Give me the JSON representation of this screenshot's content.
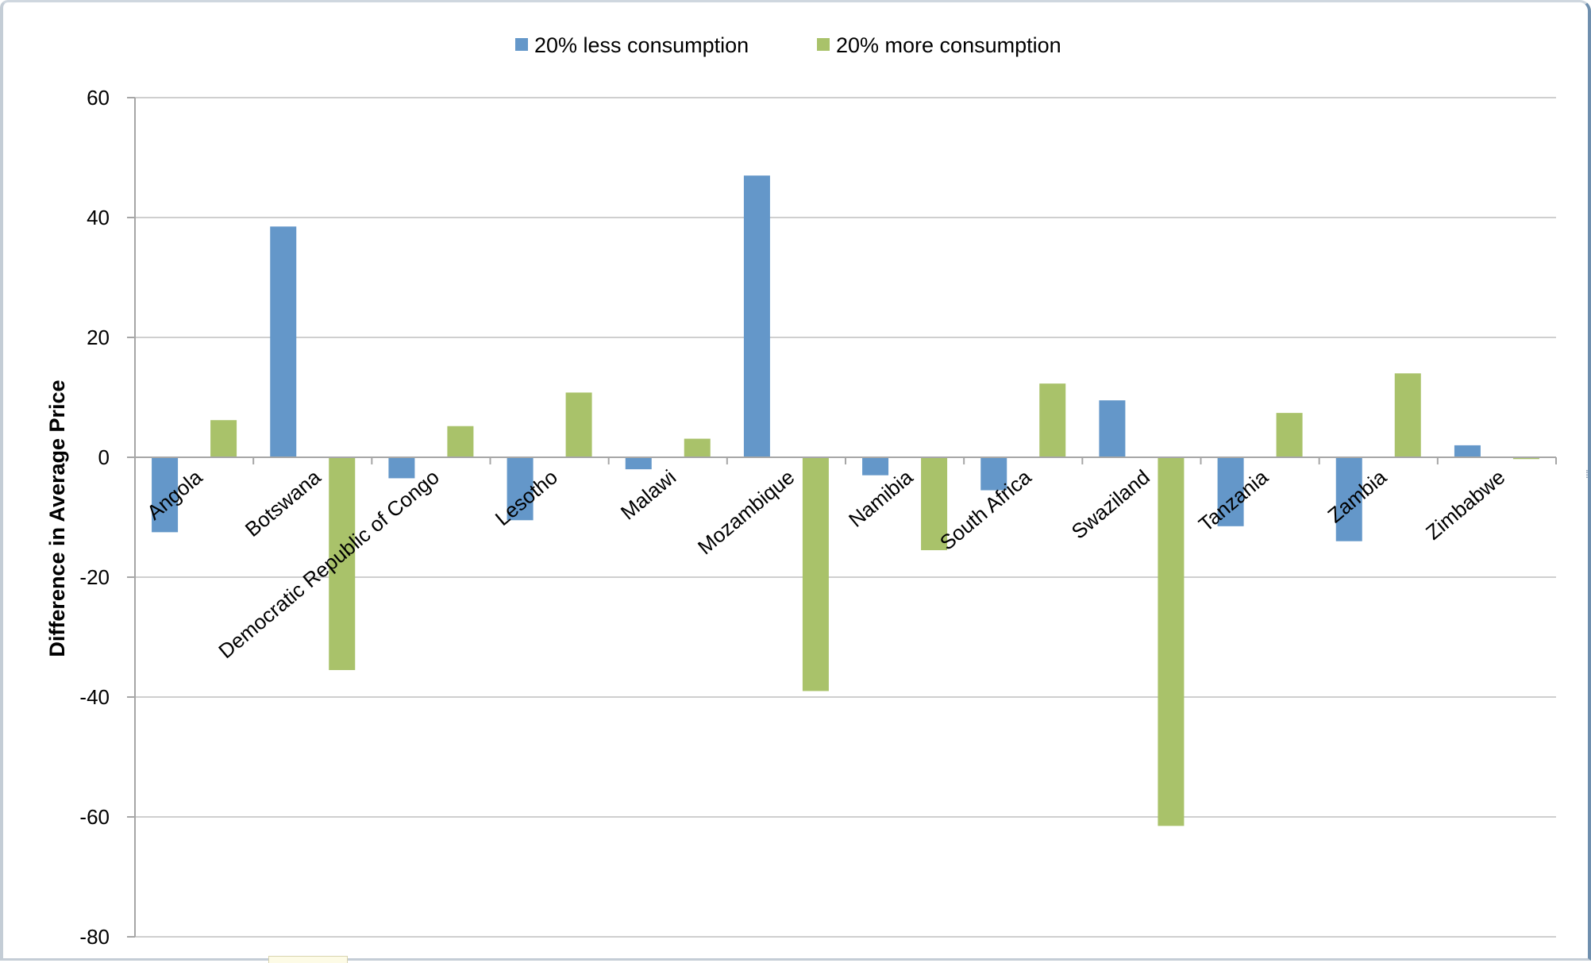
{
  "chart_data": {
    "type": "bar",
    "ylabel": "Difference  in Average Price",
    "xlabel": "",
    "ylim": [
      -80,
      60
    ],
    "yticks": [
      60,
      40,
      20,
      0,
      -20,
      -40,
      -60,
      -80
    ],
    "ytick_labels": [
      "60",
      "40",
      "20",
      "0",
      "-20",
      "-40",
      "-60",
      "-80"
    ],
    "grid": true,
    "legend_position": "top-center",
    "categories": [
      "Angola",
      "Botswana",
      "Democratic Republic of Congo",
      "Lesotho",
      "Malawi",
      "Mozambique",
      "Namibia",
      "South Africa",
      "Swaziland",
      "Tanzania",
      "Zambia",
      "Zimbabwe"
    ],
    "series": [
      {
        "name": "20% less consumption",
        "color": "#6497c9",
        "values": [
          -12.5,
          38.5,
          -3.5,
          -10.5,
          -2,
          47,
          -3,
          -5.5,
          9.5,
          -11.5,
          -14,
          2
        ]
      },
      {
        "name": "20% more consumption",
        "color": "#a9c26a",
        "values": [
          6.2,
          -35.5,
          5.2,
          10.8,
          3.1,
          -39,
          -15.5,
          12.3,
          -61.5,
          7.4,
          14,
          -0.3
        ]
      }
    ]
  }
}
